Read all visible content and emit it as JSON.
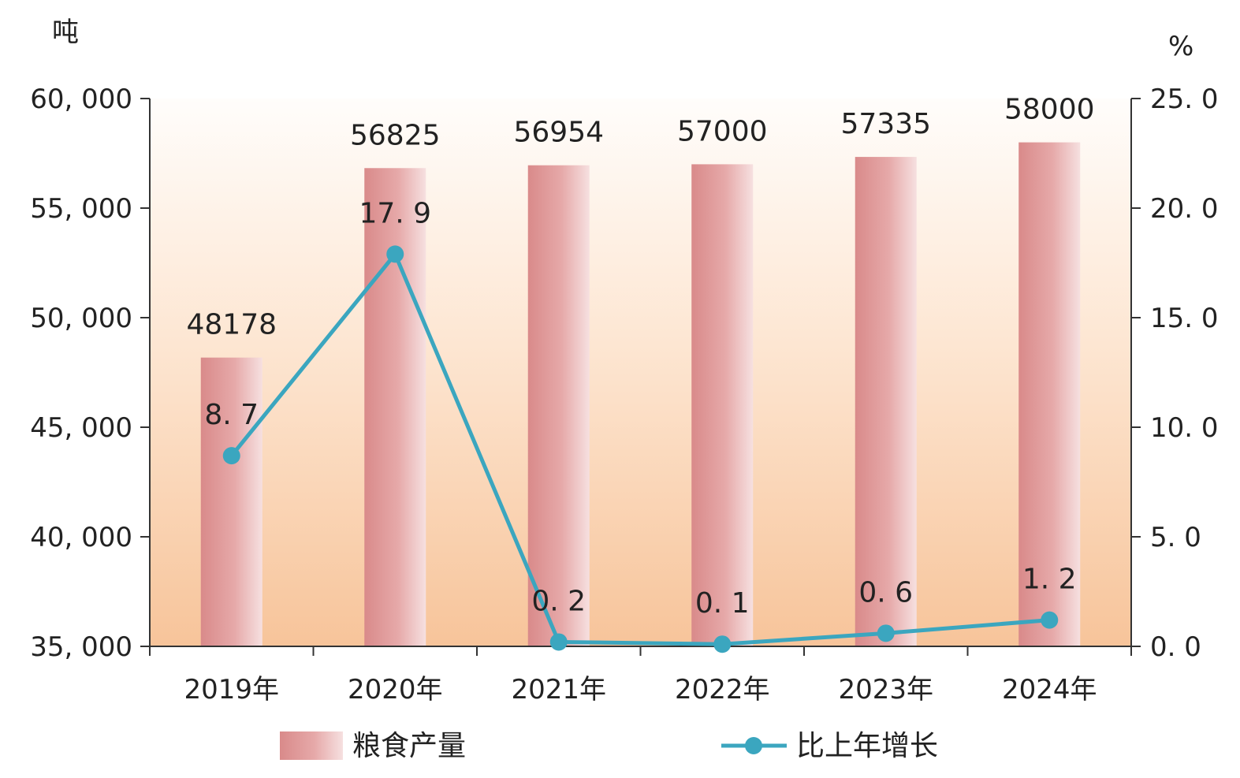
{
  "chart_data": {
    "type": "bar",
    "categories": [
      "2019年",
      "2020年",
      "2021年",
      "2022年",
      "2023年",
      "2024年"
    ],
    "series": [
      {
        "name": "粮食产量",
        "type": "bar",
        "axis": "left",
        "values": [
          48178,
          56825,
          56954,
          57000,
          57335,
          58000
        ],
        "labels": [
          "48178",
          "56825",
          "56954",
          "57000",
          "57335",
          "58000"
        ]
      },
      {
        "name": "比上年增长",
        "type": "line",
        "axis": "right",
        "values": [
          8.7,
          17.9,
          0.2,
          0.1,
          0.6,
          1.2
        ],
        "labels": [
          "8. 7",
          "17. 9",
          "0. 2",
          "0. 1",
          "0. 6",
          "1. 2"
        ]
      }
    ],
    "y_left": {
      "unit": "吨",
      "range": [
        35000,
        60000
      ],
      "ticks": [
        35000,
        40000,
        45000,
        50000,
        55000,
        60000
      ],
      "tick_labels": [
        "35, 000",
        "40, 000",
        "45, 000",
        "50, 000",
        "55, 000",
        "60, 000"
      ]
    },
    "y_right": {
      "unit": "%",
      "range": [
        0,
        25
      ],
      "ticks": [
        0,
        5,
        10,
        15,
        20,
        25
      ],
      "tick_labels": [
        "0. 0",
        "5. 0",
        "10. 0",
        "15. 0",
        "20. 0",
        "25. 0"
      ]
    },
    "legend_position": "bottom",
    "grid": false,
    "colors": {
      "bar": "#d98a8a",
      "bar_highlight": "#f6e0e0",
      "line": "#3ba6bf",
      "background_top": "#fffdfb",
      "background_bottom": "#f7c49a"
    }
  }
}
